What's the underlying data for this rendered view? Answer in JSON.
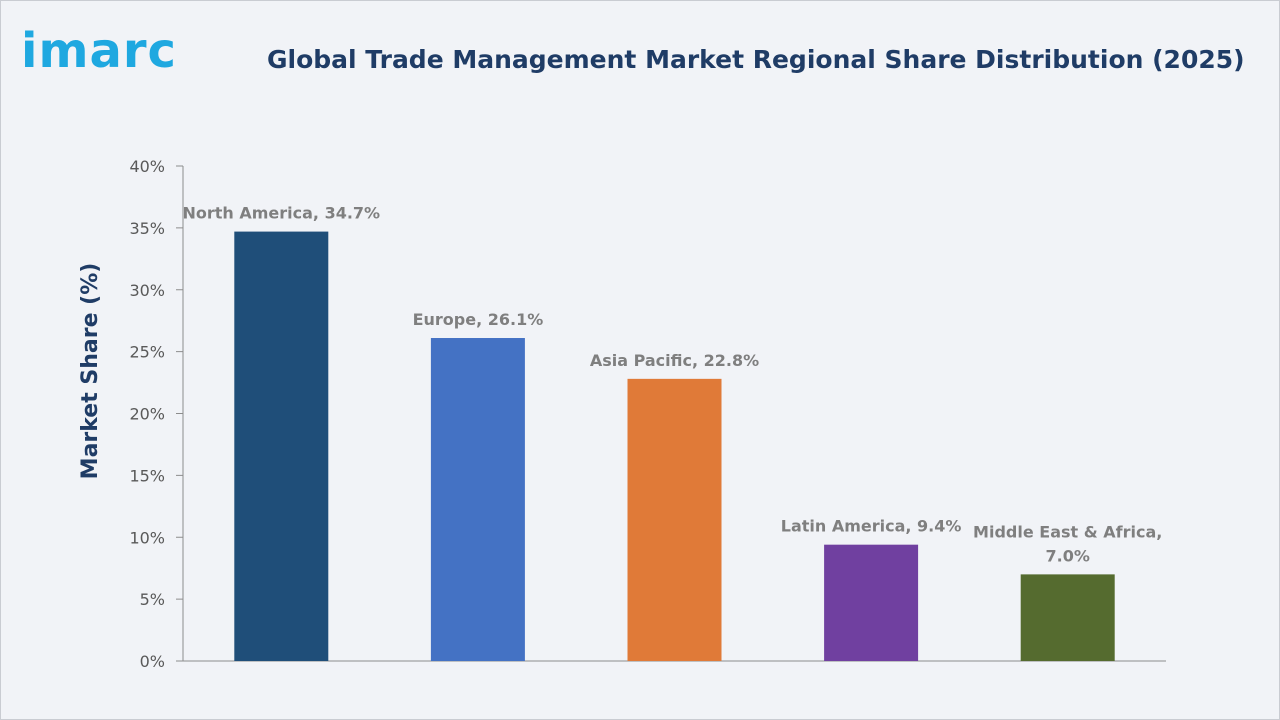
{
  "logo": {
    "text": "imarc"
  },
  "colors": {
    "background": "#f1f3f7",
    "title": "#1f3c66",
    "logo": "#1fa8e0",
    "bars": [
      "#1f4e79",
      "#4472c4",
      "#e07a38",
      "#7040a0",
      "#556b2f"
    ]
  },
  "chart_data": {
    "type": "bar",
    "title": "Global Trade Management Market Regional Share Distribution (2025)",
    "xlabel": "",
    "ylabel": "Market Share (%)",
    "ylim": [
      0,
      40
    ],
    "yticks": [
      0,
      5,
      10,
      15,
      20,
      25,
      30,
      35,
      40
    ],
    "ytick_labels": [
      "0%",
      "5%",
      "10%",
      "15%",
      "20%",
      "25%",
      "30%",
      "35%",
      "40%"
    ],
    "categories": [
      "North America",
      "Europe",
      "Asia Pacific",
      "Latin America",
      "Middle East & Africa"
    ],
    "values": [
      34.7,
      26.1,
      22.8,
      9.4,
      7.0
    ],
    "data_labels": [
      [
        "North America, 34.7%"
      ],
      [
        "Europe, 26.1%"
      ],
      [
        "Asia Pacific, 22.8%"
      ],
      [
        "Latin America, 9.4%"
      ],
      [
        "Middle East & Africa,",
        "7.0%"
      ]
    ],
    "grid": false,
    "legend": "none"
  }
}
